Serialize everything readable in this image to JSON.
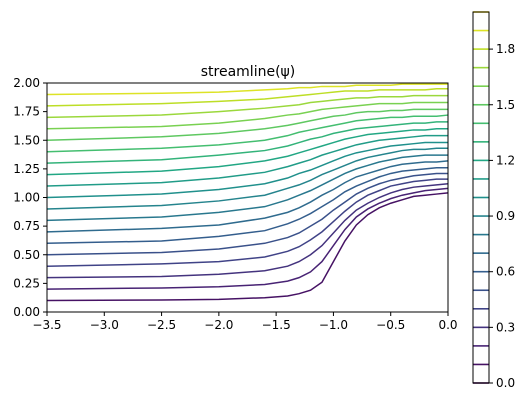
{
  "chart_data": {
    "type": "line",
    "title": "streamline(ψ)",
    "xlabel": "",
    "ylabel": "",
    "xlim": [
      -3.5,
      0.0
    ],
    "ylim": [
      0.0,
      2.0
    ],
    "grid": false,
    "x_ticks": [
      "−3.5",
      "−3.0",
      "−2.5",
      "−2.0",
      "−1.5",
      "−1.0",
      "−0.5",
      "0.0"
    ],
    "y_ticks": [
      "0.00",
      "0.25",
      "0.50",
      "0.75",
      "1.00",
      "1.25",
      "1.50",
      "1.75",
      "2.00"
    ],
    "colorbar": {
      "colormap": "viridis",
      "range": [
        0.0,
        2.0
      ],
      "tick_labels": [
        "0.0",
        "0.3",
        "0.6",
        "0.9",
        "1.2",
        "1.5",
        "1.8"
      ],
      "levels": [
        0.0,
        0.1,
        0.2,
        0.3,
        0.4,
        0.5,
        0.6,
        0.7,
        0.8,
        0.9,
        1.0,
        1.1,
        1.2,
        1.3,
        1.4,
        1.5,
        1.6,
        1.7,
        1.8,
        1.9,
        2.0
      ]
    },
    "series": [
      {
        "level": 0.1,
        "x": [
          -3.5,
          -2.5,
          -2.0,
          -1.6,
          -1.4,
          -1.3,
          -1.2,
          -1.1,
          -1.0,
          -0.9,
          -0.8,
          -0.7,
          -0.6,
          -0.5,
          -0.4,
          -0.3,
          -0.2,
          -0.1,
          0.0
        ],
        "y": [
          0.1,
          0.105,
          0.11,
          0.125,
          0.14,
          0.16,
          0.19,
          0.26,
          0.44,
          0.62,
          0.76,
          0.85,
          0.91,
          0.95,
          0.98,
          1.01,
          1.02,
          1.03,
          1.04
        ]
      },
      {
        "level": 0.2,
        "x": [
          -3.5,
          -2.5,
          -2.0,
          -1.6,
          -1.4,
          -1.3,
          -1.2,
          -1.1,
          -1.0,
          -0.9,
          -0.8,
          -0.7,
          -0.6,
          -0.5,
          -0.4,
          -0.3,
          -0.2,
          -0.1,
          0.0
        ],
        "y": [
          0.2,
          0.21,
          0.22,
          0.24,
          0.27,
          0.3,
          0.35,
          0.44,
          0.58,
          0.72,
          0.83,
          0.9,
          0.95,
          0.99,
          1.02,
          1.04,
          1.06,
          1.07,
          1.08
        ]
      },
      {
        "level": 0.3,
        "x": [
          -3.5,
          -2.5,
          -2.0,
          -1.6,
          -1.4,
          -1.3,
          -1.2,
          -1.1,
          -1.0,
          -0.9,
          -0.8,
          -0.7,
          -0.6,
          -0.5,
          -0.4,
          -0.3,
          -0.2,
          -0.1,
          0.0
        ],
        "y": [
          0.3,
          0.31,
          0.33,
          0.36,
          0.4,
          0.44,
          0.5,
          0.58,
          0.69,
          0.8,
          0.89,
          0.95,
          1.0,
          1.04,
          1.07,
          1.09,
          1.1,
          1.11,
          1.12
        ]
      },
      {
        "level": 0.4,
        "x": [
          -3.5,
          -2.5,
          -2.0,
          -1.6,
          -1.4,
          -1.3,
          -1.2,
          -1.1,
          -1.0,
          -0.9,
          -0.8,
          -0.7,
          -0.6,
          -0.5,
          -0.4,
          -0.3,
          -0.2,
          -0.1,
          0.0
        ],
        "y": [
          0.4,
          0.42,
          0.44,
          0.48,
          0.53,
          0.57,
          0.63,
          0.7,
          0.79,
          0.88,
          0.96,
          1.02,
          1.06,
          1.1,
          1.12,
          1.14,
          1.15,
          1.16,
          1.16
        ]
      },
      {
        "level": 0.5,
        "x": [
          -3.5,
          -2.5,
          -2.0,
          -1.6,
          -1.4,
          -1.3,
          -1.2,
          -1.1,
          -1.0,
          -0.9,
          -0.8,
          -0.7,
          -0.6,
          -0.5,
          -0.4,
          -0.3,
          -0.2,
          -0.1,
          0.0
        ],
        "y": [
          0.5,
          0.52,
          0.55,
          0.6,
          0.65,
          0.69,
          0.75,
          0.81,
          0.89,
          0.96,
          1.03,
          1.08,
          1.12,
          1.15,
          1.17,
          1.19,
          1.2,
          1.21,
          1.21
        ]
      },
      {
        "level": 0.6,
        "x": [
          -3.5,
          -2.5,
          -2.0,
          -1.6,
          -1.4,
          -1.3,
          -1.2,
          -1.1,
          -1.0,
          -0.9,
          -0.8,
          -0.7,
          -0.6,
          -0.5,
          -0.4,
          -0.3,
          -0.2,
          -0.1,
          0.0
        ],
        "y": [
          0.6,
          0.62,
          0.66,
          0.71,
          0.77,
          0.81,
          0.86,
          0.92,
          0.98,
          1.05,
          1.1,
          1.14,
          1.18,
          1.21,
          1.23,
          1.24,
          1.25,
          1.26,
          1.26
        ]
      },
      {
        "level": 0.7,
        "x": [
          -3.5,
          -2.5,
          -2.0,
          -1.6,
          -1.4,
          -1.3,
          -1.2,
          -1.1,
          -1.0,
          -0.9,
          -0.8,
          -0.7,
          -0.6,
          -0.5,
          -0.4,
          -0.3,
          -0.2,
          -0.1,
          0.0
        ],
        "y": [
          0.7,
          0.73,
          0.76,
          0.82,
          0.87,
          0.91,
          0.96,
          1.02,
          1.07,
          1.13,
          1.18,
          1.21,
          1.24,
          1.27,
          1.29,
          1.3,
          1.31,
          1.31,
          1.32
        ]
      },
      {
        "level": 0.8,
        "x": [
          -3.5,
          -2.5,
          -2.0,
          -1.6,
          -1.4,
          -1.3,
          -1.2,
          -1.1,
          -1.0,
          -0.9,
          -0.8,
          -0.7,
          -0.6,
          -0.5,
          -0.4,
          -0.3,
          -0.2,
          -0.1,
          0.0
        ],
        "y": [
          0.8,
          0.83,
          0.87,
          0.92,
          0.98,
          1.02,
          1.06,
          1.11,
          1.16,
          1.21,
          1.25,
          1.28,
          1.31,
          1.33,
          1.35,
          1.36,
          1.37,
          1.37,
          1.37
        ]
      },
      {
        "level": 0.9,
        "x": [
          -3.5,
          -2.5,
          -2.0,
          -1.6,
          -1.4,
          -1.3,
          -1.2,
          -1.1,
          -1.0,
          -0.9,
          -0.8,
          -0.7,
          -0.6,
          -0.5,
          -0.4,
          -0.3,
          -0.2,
          -0.1,
          0.0
        ],
        "y": [
          0.9,
          0.93,
          0.97,
          1.02,
          1.08,
          1.11,
          1.15,
          1.2,
          1.24,
          1.28,
          1.32,
          1.35,
          1.37,
          1.39,
          1.41,
          1.42,
          1.42,
          1.43,
          1.43
        ]
      },
      {
        "level": 1.0,
        "x": [
          -3.5,
          -2.5,
          -2.0,
          -1.6,
          -1.4,
          -1.3,
          -1.2,
          -1.1,
          -1.0,
          -0.9,
          -0.8,
          -0.7,
          -0.6,
          -0.5,
          -0.4,
          -0.3,
          -0.2,
          -0.1,
          0.0
        ],
        "y": [
          1.0,
          1.03,
          1.07,
          1.12,
          1.17,
          1.21,
          1.24,
          1.28,
          1.32,
          1.36,
          1.39,
          1.41,
          1.43,
          1.45,
          1.46,
          1.47,
          1.48,
          1.48,
          1.48
        ]
      },
      {
        "level": 1.1,
        "x": [
          -3.5,
          -2.5,
          -2.0,
          -1.6,
          -1.4,
          -1.3,
          -1.2,
          -1.1,
          -1.0,
          -0.9,
          -0.8,
          -0.7,
          -0.6,
          -0.5,
          -0.4,
          -0.3,
          -0.2,
          -0.1,
          0.0
        ],
        "y": [
          1.1,
          1.13,
          1.17,
          1.22,
          1.27,
          1.3,
          1.33,
          1.37,
          1.4,
          1.43,
          1.46,
          1.48,
          1.5,
          1.51,
          1.52,
          1.53,
          1.54,
          1.54,
          1.54
        ]
      },
      {
        "level": 1.2,
        "x": [
          -3.5,
          -2.5,
          -2.0,
          -1.6,
          -1.4,
          -1.3,
          -1.2,
          -1.1,
          -1.0,
          -0.9,
          -0.8,
          -0.7,
          -0.6,
          -0.5,
          -0.4,
          -0.3,
          -0.2,
          -0.1,
          0.0
        ],
        "y": [
          1.2,
          1.23,
          1.27,
          1.32,
          1.36,
          1.39,
          1.42,
          1.45,
          1.48,
          1.51,
          1.53,
          1.55,
          1.56,
          1.57,
          1.58,
          1.59,
          1.59,
          1.6,
          1.6
        ]
      },
      {
        "level": 1.3,
        "x": [
          -3.5,
          -2.5,
          -2.0,
          -1.6,
          -1.4,
          -1.3,
          -1.2,
          -1.1,
          -1.0,
          -0.9,
          -0.8,
          -0.7,
          -0.6,
          -0.5,
          -0.4,
          -0.3,
          -0.2,
          -0.1,
          0.0
        ],
        "y": [
          1.3,
          1.33,
          1.37,
          1.41,
          1.45,
          1.48,
          1.51,
          1.53,
          1.56,
          1.58,
          1.6,
          1.61,
          1.62,
          1.63,
          1.64,
          1.65,
          1.65,
          1.66,
          1.66
        ]
      },
      {
        "level": 1.4,
        "x": [
          -3.5,
          -2.5,
          -2.0,
          -1.6,
          -1.4,
          -1.3,
          -1.2,
          -1.1,
          -1.0,
          -0.9,
          -0.8,
          -0.7,
          -0.6,
          -0.5,
          -0.4,
          -0.3,
          -0.2,
          -0.1,
          0.0
        ],
        "y": [
          1.4,
          1.43,
          1.46,
          1.5,
          1.54,
          1.57,
          1.59,
          1.61,
          1.63,
          1.65,
          1.67,
          1.68,
          1.69,
          1.7,
          1.7,
          1.71,
          1.71,
          1.71,
          1.72
        ]
      },
      {
        "level": 1.5,
        "x": [
          -3.5,
          -2.5,
          -2.0,
          -1.6,
          -1.4,
          -1.3,
          -1.2,
          -1.1,
          -1.0,
          -0.9,
          -0.8,
          -0.7,
          -0.6,
          -0.5,
          -0.4,
          -0.3,
          -0.2,
          -0.1,
          0.0
        ],
        "y": [
          1.5,
          1.53,
          1.56,
          1.6,
          1.63,
          1.65,
          1.67,
          1.69,
          1.71,
          1.72,
          1.74,
          1.75,
          1.75,
          1.76,
          1.76,
          1.77,
          1.77,
          1.77,
          1.77
        ]
      },
      {
        "level": 1.6,
        "x": [
          -3.5,
          -2.5,
          -2.0,
          -1.6,
          -1.4,
          -1.3,
          -1.2,
          -1.1,
          -1.0,
          -0.9,
          -0.8,
          -0.7,
          -0.6,
          -0.5,
          -0.4,
          -0.3,
          -0.2,
          -0.1,
          0.0
        ],
        "y": [
          1.6,
          1.62,
          1.65,
          1.69,
          1.72,
          1.73,
          1.75,
          1.77,
          1.78,
          1.79,
          1.8,
          1.81,
          1.82,
          1.82,
          1.82,
          1.83,
          1.83,
          1.83,
          1.83
        ]
      },
      {
        "level": 1.7,
        "x": [
          -3.5,
          -2.5,
          -2.0,
          -1.6,
          -1.4,
          -1.3,
          -1.2,
          -1.1,
          -1.0,
          -0.9,
          -0.8,
          -0.7,
          -0.6,
          -0.5,
          -0.4,
          -0.3,
          -0.2,
          -0.1,
          0.0
        ],
        "y": [
          1.7,
          1.72,
          1.75,
          1.78,
          1.8,
          1.81,
          1.83,
          1.84,
          1.85,
          1.86,
          1.87,
          1.87,
          1.88,
          1.88,
          1.88,
          1.89,
          1.89,
          1.89,
          1.89
        ]
      },
      {
        "level": 1.8,
        "x": [
          -3.5,
          -2.5,
          -2.0,
          -1.6,
          -1.4,
          -1.3,
          -1.2,
          -1.1,
          -1.0,
          -0.9,
          -0.8,
          -0.7,
          -0.6,
          -0.5,
          -0.4,
          -0.3,
          -0.2,
          -0.1,
          0.0
        ],
        "y": [
          1.8,
          1.82,
          1.84,
          1.86,
          1.88,
          1.89,
          1.9,
          1.91,
          1.92,
          1.93,
          1.93,
          1.93,
          1.94,
          1.94,
          1.94,
          1.94,
          1.94,
          1.95,
          1.95
        ]
      },
      {
        "level": 1.9,
        "x": [
          -3.5,
          -2.5,
          -2.0,
          -1.6,
          -1.4,
          -1.3,
          -1.2,
          -1.1,
          -1.0,
          -0.9,
          -0.8,
          -0.7,
          -0.6,
          -0.5,
          -0.4,
          -0.3,
          -0.2,
          -0.1,
          0.0
        ],
        "y": [
          1.9,
          1.91,
          1.92,
          1.94,
          1.95,
          1.96,
          1.96,
          1.97,
          1.97,
          1.97,
          1.98,
          1.98,
          1.98,
          1.98,
          1.99,
          1.99,
          1.99,
          1.99,
          1.99
        ]
      }
    ]
  }
}
